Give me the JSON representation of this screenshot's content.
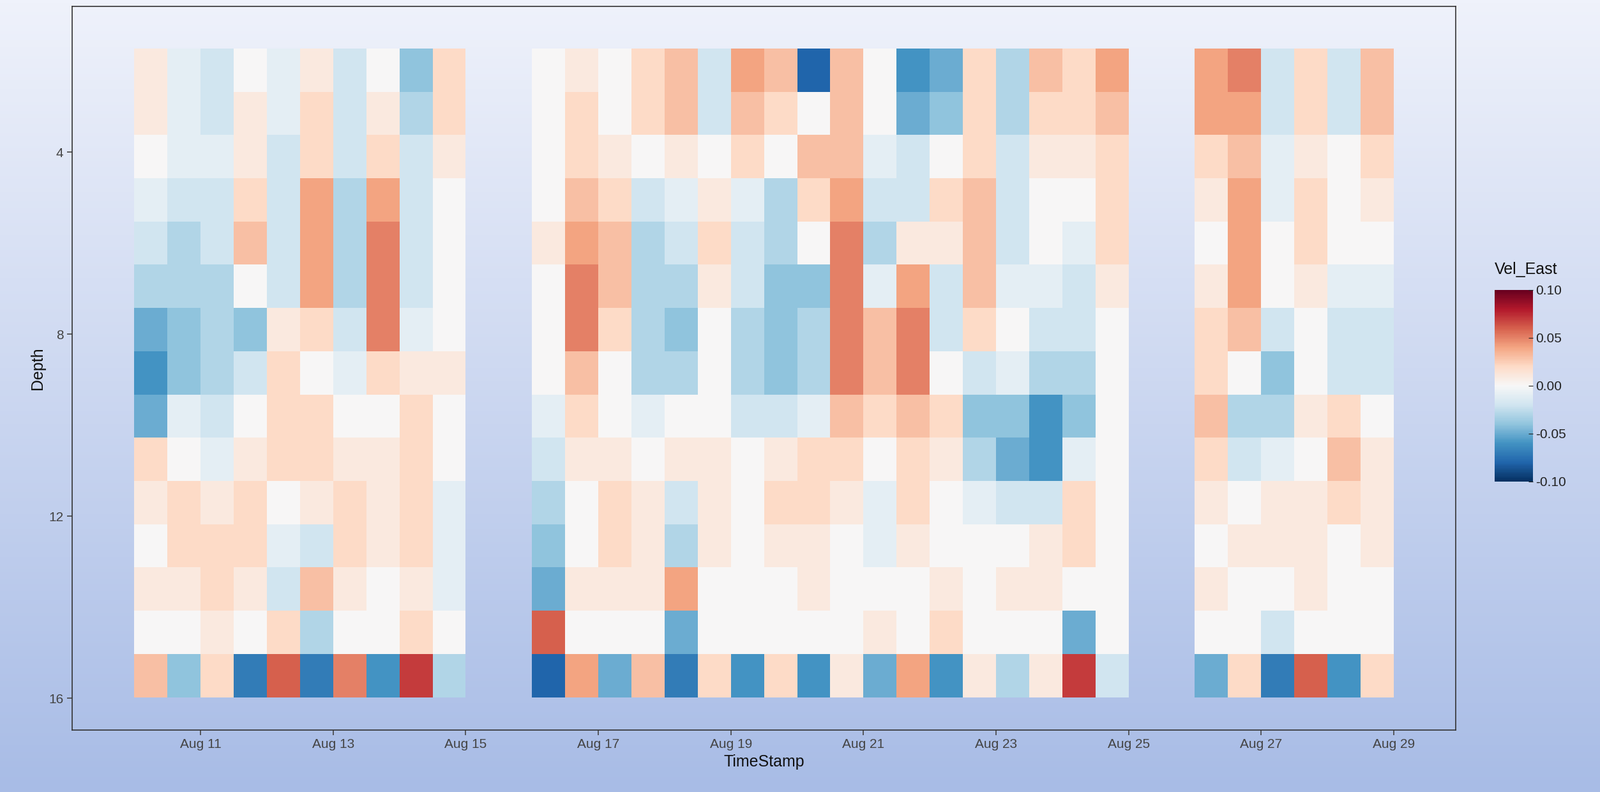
{
  "chart_data": {
    "type": "heatmap",
    "x_label": "TimeStamp",
    "y_label": "Depth",
    "xlim": [
      9.06,
      29.94
    ],
    "ylim": [
      16.7,
      0.8
    ],
    "xticks": [
      {
        "value": 11,
        "label": "Aug 11"
      },
      {
        "value": 13,
        "label": "Aug 13"
      },
      {
        "value": 15,
        "label": "Aug 15"
      },
      {
        "value": 17,
        "label": "Aug 17"
      },
      {
        "value": 19,
        "label": "Aug 19"
      },
      {
        "value": 21,
        "label": "Aug 21"
      },
      {
        "value": 23,
        "label": "Aug 23"
      },
      {
        "value": 25,
        "label": "Aug 25"
      },
      {
        "value": 27,
        "label": "Aug 27"
      },
      {
        "value": 29,
        "label": "Aug 29"
      }
    ],
    "yticks": [
      4,
      8,
      12,
      16
    ],
    "x": [
      10.25,
      10.75,
      11.25,
      11.75,
      12.25,
      12.75,
      13.25,
      13.75,
      14.25,
      14.75,
      15.25,
      15.75,
      16.25,
      16.75,
      17.25,
      17.75,
      18.25,
      18.75,
      19.25,
      19.75,
      20.25,
      20.75,
      21.25,
      21.75,
      22.25,
      22.75,
      23.25,
      23.75,
      24.25,
      24.75,
      25.25,
      25.75,
      26.25,
      26.75,
      27.25,
      27.75,
      28.25,
      28.75
    ],
    "y": [
      2.2,
      3.15,
      4.1,
      5.05,
      6.0,
      6.95,
      7.9,
      8.85,
      9.8,
      10.75,
      11.7,
      12.65,
      13.6,
      14.55,
      15.5
    ],
    "values": [
      [
        0.01,
        0.01,
        0.0,
        -0.01,
        -0.02,
        -0.03,
        -0.05,
        -0.06,
        -0.05,
        0.02,
        0.01,
        0.0,
        0.01,
        0.0,
        0.03
      ],
      [
        -0.01,
        -0.01,
        -0.01,
        -0.02,
        -0.03,
        -0.03,
        -0.04,
        -0.04,
        -0.01,
        0.0,
        0.02,
        0.02,
        0.01,
        0.0,
        -0.04
      ],
      [
        -0.02,
        -0.02,
        -0.01,
        -0.02,
        -0.02,
        -0.03,
        -0.03,
        -0.03,
        -0.02,
        -0.01,
        0.01,
        0.02,
        0.02,
        0.01,
        0.02
      ],
      [
        0.0,
        0.01,
        0.01,
        0.02,
        0.03,
        0.0,
        -0.04,
        -0.02,
        0.0,
        0.01,
        0.02,
        0.02,
        0.01,
        0.0,
        -0.07
      ],
      [
        -0.01,
        -0.01,
        -0.02,
        -0.02,
        -0.02,
        -0.02,
        0.01,
        0.02,
        0.02,
        0.02,
        0.0,
        -0.01,
        -0.02,
        0.02,
        0.06
      ],
      [
        0.01,
        0.02,
        0.02,
        0.04,
        0.04,
        0.04,
        0.02,
        0.0,
        0.02,
        0.02,
        0.01,
        -0.02,
        0.03,
        -0.03,
        -0.07
      ],
      [
        -0.02,
        -0.02,
        -0.02,
        -0.03,
        -0.03,
        -0.03,
        -0.02,
        -0.01,
        0.0,
        0.01,
        0.02,
        0.02,
        0.01,
        0.0,
        0.05
      ],
      [
        0.0,
        0.01,
        0.02,
        0.04,
        0.05,
        0.05,
        0.05,
        0.02,
        0.0,
        0.01,
        0.01,
        0.01,
        0.0,
        0.0,
        -0.06
      ],
      [
        -0.04,
        -0.03,
        -0.02,
        -0.02,
        -0.02,
        -0.02,
        -0.01,
        0.01,
        0.02,
        0.02,
        0.02,
        0.02,
        0.01,
        0.02,
        0.07
      ],
      [
        0.02,
        0.02,
        0.01,
        0.0,
        0.0,
        0.0,
        0.0,
        0.01,
        0.0,
        0.0,
        -0.01,
        -0.01,
        -0.01,
        0.0,
        -0.03
      ],
      [
        null,
        null,
        null,
        null,
        null,
        null,
        null,
        null,
        null,
        null,
        null,
        null,
        null,
        null,
        null
      ],
      [
        null,
        null,
        null,
        null,
        null,
        null,
        null,
        null,
        null,
        null,
        null,
        null,
        null,
        null,
        null
      ],
      [
        0.0,
        0.0,
        0.0,
        0.0,
        0.01,
        0.0,
        0.0,
        0.0,
        -0.01,
        -0.02,
        -0.03,
        -0.04,
        -0.05,
        0.06,
        -0.08
      ],
      [
        0.01,
        0.02,
        0.02,
        0.03,
        0.04,
        0.05,
        0.05,
        0.03,
        0.02,
        0.01,
        0.0,
        0.0,
        0.01,
        0.0,
        0.04
      ],
      [
        0.0,
        0.0,
        0.01,
        0.02,
        0.03,
        0.03,
        0.02,
        0.0,
        0.0,
        0.01,
        0.02,
        0.02,
        0.01,
        0.0,
        -0.05
      ],
      [
        0.02,
        0.02,
        0.0,
        -0.02,
        -0.03,
        -0.03,
        -0.03,
        -0.03,
        -0.01,
        0.0,
        0.01,
        0.01,
        0.01,
        0.0,
        0.03
      ],
      [
        0.03,
        0.03,
        0.01,
        -0.01,
        -0.02,
        -0.03,
        -0.04,
        -0.03,
        0.0,
        0.01,
        -0.02,
        -0.03,
        0.04,
        -0.05,
        -0.07
      ],
      [
        -0.02,
        -0.02,
        0.0,
        0.01,
        0.02,
        0.01,
        0.0,
        0.0,
        0.0,
        0.01,
        0.01,
        0.01,
        0.0,
        0.0,
        0.02
      ],
      [
        0.04,
        0.03,
        0.02,
        -0.01,
        -0.02,
        -0.02,
        -0.03,
        -0.03,
        -0.02,
        0.0,
        0.0,
        0.0,
        0.0,
        0.0,
        -0.06
      ],
      [
        0.03,
        0.02,
        0.0,
        -0.03,
        -0.03,
        -0.04,
        -0.04,
        -0.04,
        -0.02,
        0.01,
        0.02,
        0.01,
        0.0,
        0.0,
        0.02
      ],
      [
        -0.08,
        0.0,
        0.03,
        0.02,
        0.0,
        -0.04,
        -0.03,
        -0.03,
        -0.01,
        0.02,
        0.02,
        0.01,
        0.01,
        0.0,
        -0.06
      ],
      [
        0.03,
        0.03,
        0.03,
        0.04,
        0.05,
        0.05,
        0.05,
        0.05,
        0.03,
        0.02,
        0.01,
        0.0,
        0.0,
        0.0,
        0.01
      ],
      [
        0.0,
        0.0,
        -0.01,
        -0.02,
        -0.03,
        -0.01,
        0.03,
        0.03,
        0.02,
        0.0,
        -0.01,
        -0.01,
        0.0,
        0.01,
        -0.05
      ],
      [
        -0.06,
        -0.05,
        -0.02,
        -0.02,
        0.01,
        0.04,
        0.05,
        0.05,
        0.03,
        0.02,
        0.02,
        0.01,
        0.0,
        0.0,
        0.04
      ],
      [
        -0.05,
        -0.04,
        0.0,
        0.02,
        0.01,
        -0.02,
        -0.02,
        0.0,
        0.02,
        0.01,
        0.0,
        0.0,
        0.01,
        0.02,
        -0.06
      ],
      [
        0.02,
        0.02,
        0.02,
        0.03,
        0.03,
        0.03,
        0.02,
        -0.02,
        -0.04,
        -0.03,
        -0.01,
        0.0,
        0.0,
        0.0,
        0.01
      ],
      [
        -0.03,
        -0.03,
        -0.02,
        -0.02,
        -0.02,
        -0.01,
        0.0,
        -0.01,
        -0.04,
        -0.05,
        -0.02,
        0.0,
        0.01,
        0.0,
        -0.03
      ],
      [
        0.03,
        0.02,
        0.01,
        0.0,
        0.0,
        -0.01,
        -0.02,
        -0.03,
        -0.06,
        -0.06,
        -0.02,
        0.01,
        0.01,
        0.0,
        0.01
      ],
      [
        0.02,
        0.02,
        0.01,
        0.0,
        -0.01,
        -0.02,
        -0.02,
        -0.03,
        -0.04,
        -0.01,
        0.02,
        0.02,
        0.0,
        -0.05,
        0.07
      ],
      [
        0.04,
        0.03,
        0.02,
        0.02,
        0.02,
        0.01,
        0.0,
        0.0,
        0.0,
        0.0,
        0.0,
        0.0,
        0.0,
        0.0,
        -0.02
      ],
      [
        null,
        null,
        null,
        null,
        null,
        null,
        null,
        null,
        null,
        null,
        null,
        null,
        null,
        null,
        null
      ],
      [
        null,
        null,
        null,
        null,
        null,
        null,
        null,
        null,
        null,
        null,
        null,
        null,
        null,
        null,
        null
      ],
      [
        0.04,
        0.04,
        0.02,
        0.01,
        0.0,
        0.01,
        0.02,
        0.02,
        0.03,
        0.02,
        0.01,
        0.0,
        0.01,
        0.0,
        -0.05
      ],
      [
        0.05,
        0.04,
        0.03,
        0.04,
        0.04,
        0.04,
        0.03,
        0.0,
        -0.03,
        -0.02,
        0.0,
        0.01,
        0.0,
        0.0,
        0.02
      ],
      [
        -0.02,
        -0.02,
        -0.01,
        -0.01,
        0.0,
        0.0,
        -0.02,
        -0.04,
        -0.03,
        -0.01,
        0.01,
        0.01,
        0.0,
        -0.02,
        -0.07
      ],
      [
        0.02,
        0.02,
        0.01,
        0.02,
        0.02,
        0.01,
        0.0,
        0.0,
        0.01,
        0.0,
        0.01,
        0.01,
        0.01,
        0.0,
        0.06
      ],
      [
        -0.02,
        -0.02,
        0.0,
        0.0,
        0.0,
        -0.01,
        -0.02,
        -0.02,
        0.02,
        0.03,
        0.02,
        0.0,
        0.0,
        0.0,
        -0.06
      ],
      [
        0.03,
        0.03,
        0.02,
        0.01,
        0.0,
        -0.01,
        -0.02,
        -0.02,
        0.0,
        0.01,
        0.01,
        0.01,
        0.0,
        0.0,
        0.02
      ]
    ],
    "colorbar": {
      "title": "Vel_East",
      "range": [
        -0.1,
        0.1
      ],
      "ticks": [
        {
          "value": 0.1,
          "label": "0.10"
        },
        {
          "value": 0.05,
          "label": "0.05"
        },
        {
          "value": 0.0,
          "label": "0.00"
        },
        {
          "value": -0.05,
          "label": "-0.05"
        },
        {
          "value": -0.1,
          "label": "-0.10"
        }
      ]
    }
  }
}
